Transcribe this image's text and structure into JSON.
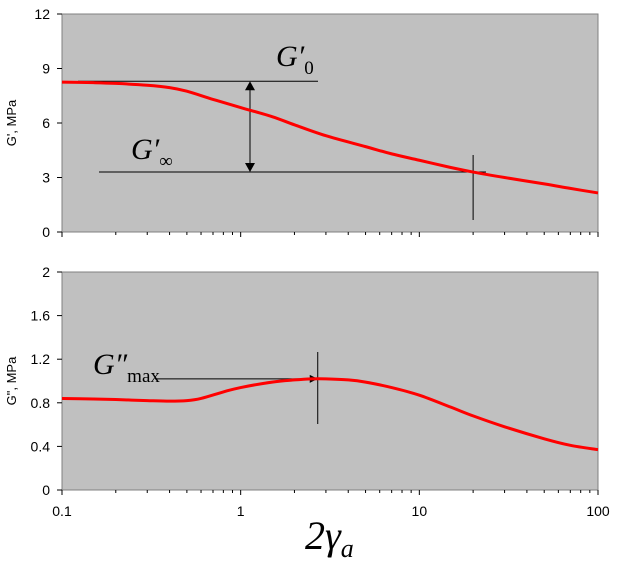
{
  "chart_data": [
    {
      "type": "line",
      "ylabel": "G', MPa",
      "x_scale": "log",
      "xlim": [
        0.1,
        100
      ],
      "ylim": [
        0,
        12
      ],
      "yticks": [
        "0",
        "3",
        "6",
        "9",
        "12"
      ],
      "grid": false,
      "series": [
        {
          "color": "#ff0000",
          "x": [
            0.1,
            0.15,
            0.2,
            0.3,
            0.4,
            0.5,
            0.7,
            1,
            1.5,
            2,
            3,
            5,
            7,
            10,
            15,
            20,
            30,
            50,
            70,
            100
          ],
          "y": [
            8.25,
            8.22,
            8.18,
            8.08,
            7.95,
            7.75,
            7.3,
            6.85,
            6.35,
            5.9,
            5.3,
            4.7,
            4.3,
            3.95,
            3.55,
            3.3,
            3.0,
            2.65,
            2.4,
            2.15
          ]
        }
      ],
      "annotations": {
        "g0_label": "G′",
        "g0_sub": "0",
        "ginf_label": "G′",
        "ginf_sub": "∞",
        "g0_level": 8.3,
        "ginf_level": 3.3,
        "marker_x": 20
      }
    },
    {
      "type": "line",
      "ylabel": "G\", MPa",
      "x_scale": "log",
      "xlim": [
        0.1,
        100
      ],
      "ylim": [
        0,
        2
      ],
      "yticks": [
        "0",
        "0.4",
        "0.8",
        "1.2",
        "1.6",
        "2"
      ],
      "xticks": [
        "0.1",
        "1",
        "10",
        "100"
      ],
      "xlabel_main": "2γ",
      "xlabel_sub": "a",
      "grid": false,
      "series": [
        {
          "color": "#ff0000",
          "x": [
            0.1,
            0.15,
            0.2,
            0.3,
            0.4,
            0.5,
            0.6,
            0.8,
            1,
            1.5,
            2,
            2.5,
            3,
            4,
            5,
            7,
            10,
            15,
            20,
            30,
            50,
            70,
            100
          ],
          "y": [
            0.84,
            0.835,
            0.83,
            0.82,
            0.815,
            0.82,
            0.84,
            0.9,
            0.94,
            0.99,
            1.01,
            1.02,
            1.02,
            1.01,
            0.99,
            0.94,
            0.87,
            0.76,
            0.68,
            0.58,
            0.47,
            0.41,
            0.37
          ]
        }
      ],
      "annotations": {
        "gmax_label": "G″",
        "gmax_sub": "max",
        "gmax_level": 1.02,
        "marker_x": 2.7
      }
    }
  ]
}
